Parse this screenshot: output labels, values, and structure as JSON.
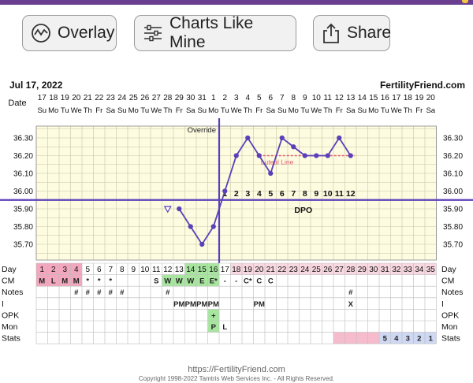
{
  "header": {
    "buttons": [
      {
        "label": "Overlay",
        "icon": "overlay-wave-icon"
      },
      {
        "label": "Charts Like Mine",
        "icon": "sliders-icon"
      },
      {
        "label": "Share",
        "icon": "share-icon"
      }
    ]
  },
  "chart_header": {
    "start_date": "Jul 17, 2022",
    "brand": "FertilityFriend.com"
  },
  "colors": {
    "chart_bg": "#fdfbe0",
    "grid": "#c9c6a4",
    "line": "#5b3fb8",
    "coverline": "#5b3fb8",
    "luteal": "#e06070",
    "fertile": "#a8e6a0",
    "menses": "#f2a7bf",
    "stats_pink": "#f6bccd",
    "post_ov": "#f9d8e2",
    "stats_blue": "#cfd8f3"
  },
  "chart_data": {
    "type": "line",
    "title": "",
    "xlabel": "",
    "ylabel": "",
    "date_label": "Date",
    "day_label": "Day",
    "dates": [
      "17",
      "18",
      "19",
      "20",
      "21",
      "22",
      "23",
      "24",
      "25",
      "26",
      "27",
      "28",
      "29",
      "30",
      "31",
      "1",
      "2",
      "3",
      "4",
      "5",
      "6",
      "7",
      "8",
      "9",
      "10",
      "11",
      "12",
      "13",
      "14",
      "15",
      "16",
      "17",
      "18",
      "19",
      "20"
    ],
    "weekdays": [
      "Su",
      "Mo",
      "Tu",
      "We",
      "Th",
      "Fr",
      "Sa",
      "Su",
      "Mo",
      "Tu",
      "We",
      "Th",
      "Fr",
      "Sa",
      "Su",
      "Mo",
      "Tu",
      "We",
      "Th",
      "Fr",
      "Sa",
      "Su",
      "Mo",
      "Tu",
      "We",
      "Th",
      "Fr",
      "Sa",
      "Su",
      "Mo",
      "Tu",
      "We",
      "Th",
      "Fr",
      "Sa"
    ],
    "days": [
      "1",
      "2",
      "3",
      "4",
      "5",
      "6",
      "7",
      "8",
      "9",
      "10",
      "11",
      "12",
      "13",
      "14",
      "15",
      "16",
      "17",
      "18",
      "19",
      "20",
      "21",
      "22",
      "23",
      "24",
      "25",
      "26",
      "27",
      "28",
      "29",
      "30",
      "31",
      "32",
      "33",
      "34",
      "35"
    ],
    "y_ticks": [
      "36.30",
      "36.20",
      "36.10",
      "36.00",
      "35.90",
      "35.80",
      "35.70"
    ],
    "ylim": [
      35.65,
      36.37
    ],
    "temps": [
      {
        "day": 13,
        "value": 35.9
      },
      {
        "day": 14,
        "value": 35.8
      },
      {
        "day": 15,
        "value": 35.7
      },
      {
        "day": 16,
        "value": 35.8
      },
      {
        "day": 17,
        "value": 36.0
      },
      {
        "day": 18,
        "value": 36.2
      },
      {
        "day": 19,
        "value": 36.3
      },
      {
        "day": 20,
        "value": 36.2
      },
      {
        "day": 21,
        "value": 36.1
      },
      {
        "day": 22,
        "value": 36.3
      },
      {
        "day": 23,
        "value": 36.25
      },
      {
        "day": 24,
        "value": 36.2
      },
      {
        "day": 25,
        "value": 36.2
      },
      {
        "day": 26,
        "value": 36.2
      },
      {
        "day": 27,
        "value": 36.3
      },
      {
        "day": 28,
        "value": 36.2
      }
    ],
    "open_marker": {
      "day": 12,
      "value": 35.9
    },
    "coverline": 35.95,
    "ovulation_day": 16,
    "override_label": "Override",
    "luteal": {
      "label": "Luteal Line",
      "value": 36.2,
      "from_day": 20,
      "to_day": 28
    },
    "dpo_label": "DPO",
    "dpo": [
      {
        "day": 17,
        "label": "1"
      },
      {
        "day": 18,
        "label": "2"
      },
      {
        "day": 19,
        "label": "3"
      },
      {
        "day": 20,
        "label": "4"
      },
      {
        "day": 21,
        "label": "5"
      },
      {
        "day": 22,
        "label": "6"
      },
      {
        "day": 23,
        "label": "7"
      },
      {
        "day": 24,
        "label": "8"
      },
      {
        "day": 25,
        "label": "9"
      },
      {
        "day": 26,
        "label": "10"
      },
      {
        "day": 27,
        "label": "11"
      },
      {
        "day": 28,
        "label": "12"
      }
    ],
    "rows": [
      {
        "label": "CM",
        "cells": [
          {
            "day": 1,
            "text": "M"
          },
          {
            "day": 2,
            "text": "L"
          },
          {
            "day": 3,
            "text": "M"
          },
          {
            "day": 4,
            "text": "M"
          },
          {
            "day": 5,
            "text": "*"
          },
          {
            "day": 6,
            "text": "*"
          },
          {
            "day": 7,
            "text": "*"
          },
          {
            "day": 11,
            "text": "S"
          },
          {
            "day": 12,
            "text": "W"
          },
          {
            "day": 13,
            "text": "W"
          },
          {
            "day": 14,
            "text": "W"
          },
          {
            "day": 15,
            "text": "E"
          },
          {
            "day": 16,
            "text": "E*"
          },
          {
            "day": 17,
            "text": "-"
          },
          {
            "day": 18,
            "text": "-"
          },
          {
            "day": 19,
            "text": "C*"
          },
          {
            "day": 20,
            "text": "C"
          },
          {
            "day": 21,
            "text": "C"
          }
        ]
      },
      {
        "label": "Notes",
        "cells": [
          {
            "day": 4,
            "text": "#"
          },
          {
            "day": 5,
            "text": "#"
          },
          {
            "day": 6,
            "text": "#"
          },
          {
            "day": 7,
            "text": "#"
          },
          {
            "day": 8,
            "text": "#"
          },
          {
            "day": 12,
            "text": "#"
          },
          {
            "day": 28,
            "text": "#"
          }
        ]
      },
      {
        "label": "I",
        "cells": [
          {
            "day": 13,
            "text": "PM"
          },
          {
            "day": 14,
            "text": "PM"
          },
          {
            "day": 15,
            "text": "PM"
          },
          {
            "day": 16,
            "text": "PM"
          },
          {
            "day": 20,
            "text": "PM"
          },
          {
            "day": 28,
            "text": "X"
          }
        ]
      },
      {
        "label": "OPK",
        "cells": [
          {
            "day": 16,
            "text": "+"
          }
        ]
      },
      {
        "label": "Mon",
        "cells": [
          {
            "day": 16,
            "text": "P"
          },
          {
            "day": 17,
            "text": "L"
          }
        ]
      },
      {
        "label": "Stats",
        "cells": [
          {
            "day": 31,
            "text": "5"
          },
          {
            "day": 32,
            "text": "4"
          },
          {
            "day": 33,
            "text": "3"
          },
          {
            "day": 34,
            "text": "2"
          },
          {
            "day": 35,
            "text": "1"
          }
        ]
      }
    ]
  },
  "footer": {
    "url": "https://FertilityFriend.com",
    "copyright": "Copyright 1998-2022 Tamtris Web Services Inc. - All Rights Reserved."
  }
}
